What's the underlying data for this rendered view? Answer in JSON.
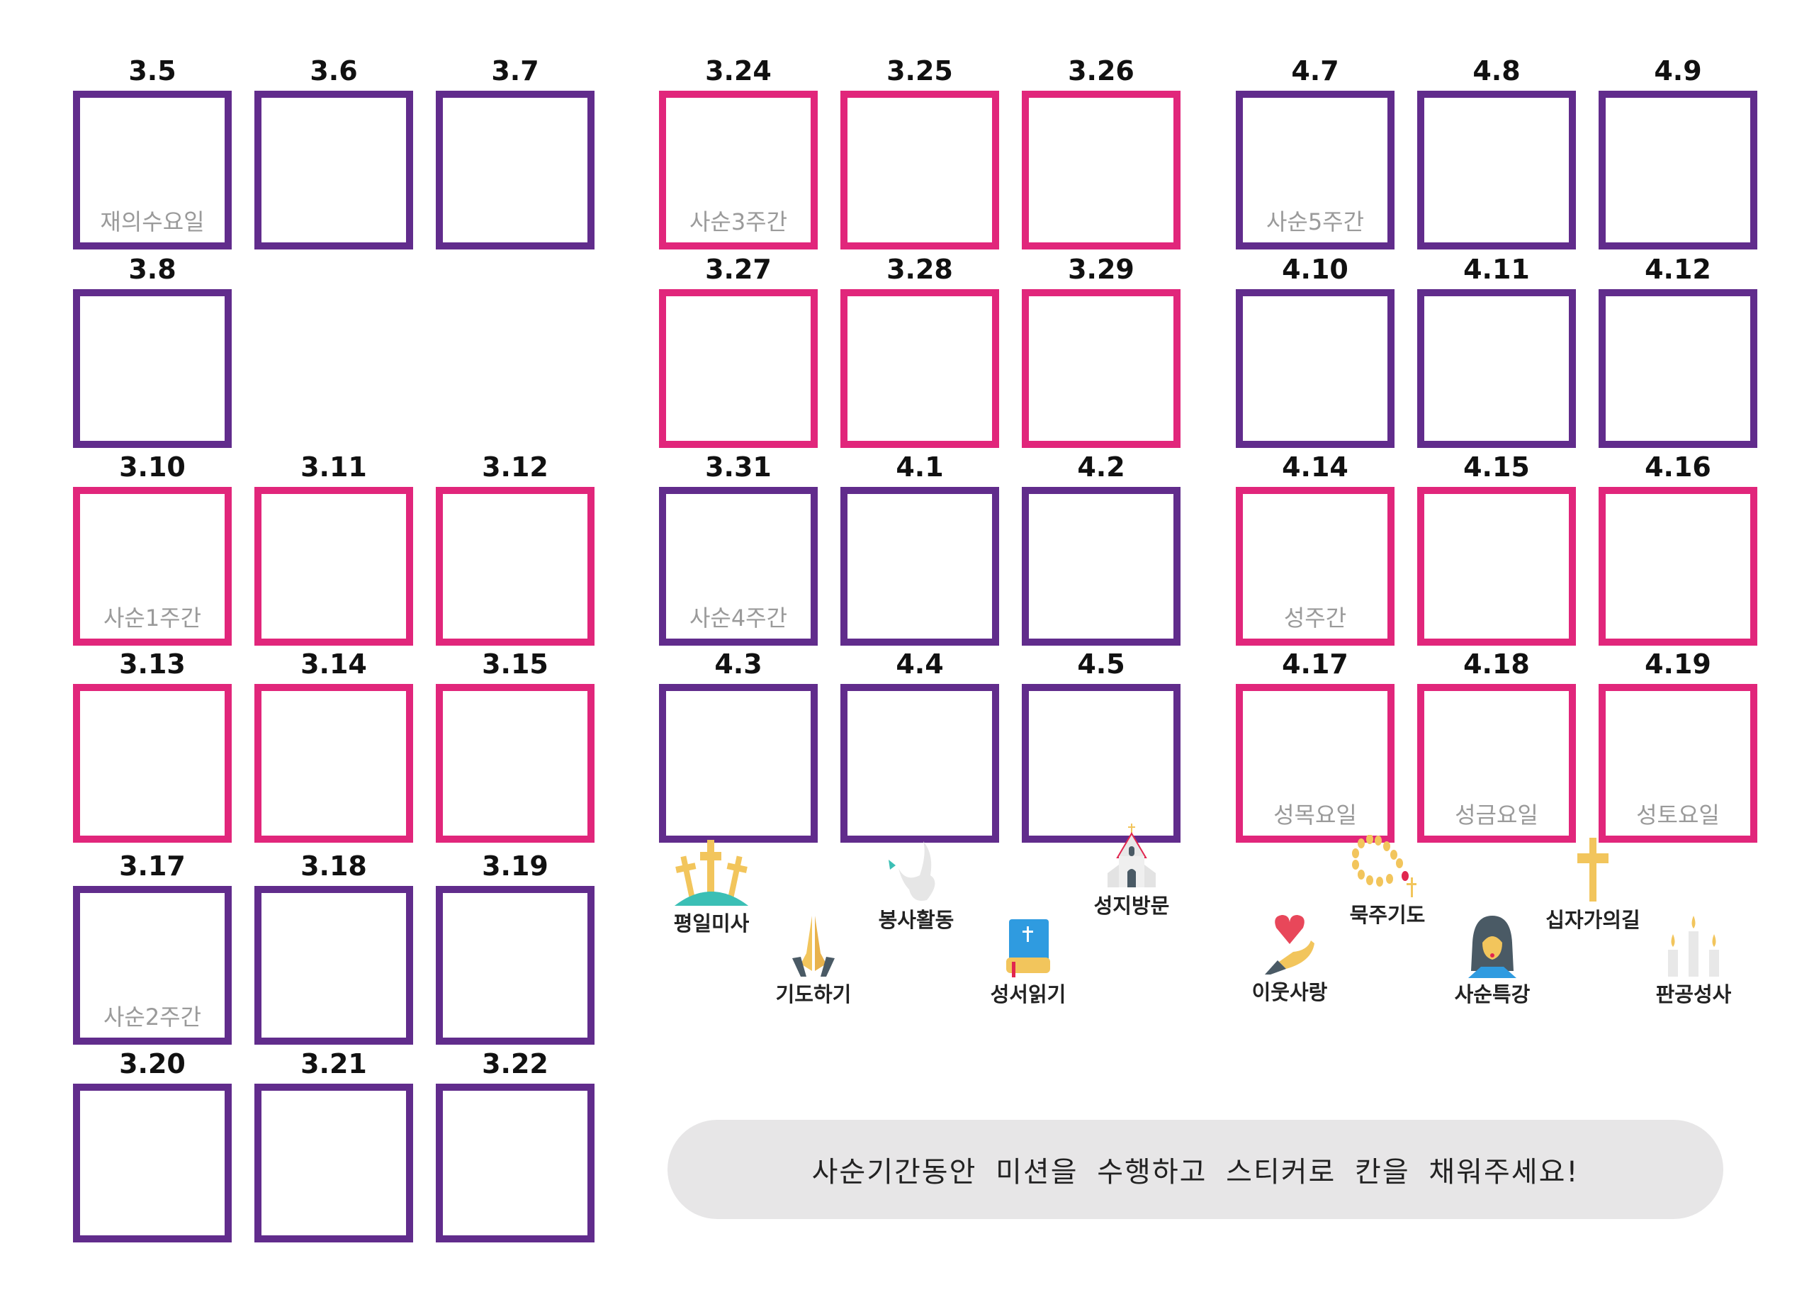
{
  "colors": {
    "purple": "#612c8c",
    "pink": "#e1267b"
  },
  "groups": [
    {
      "rows": [
        {
          "color": "purple",
          "cells": [
            {
              "date": "3.5",
              "note": "재의수요일"
            },
            {
              "date": "3.6"
            },
            {
              "date": "3.7"
            }
          ]
        },
        {
          "color": "purple",
          "cells": [
            {
              "date": "3.8"
            }
          ]
        },
        {
          "color": "pink",
          "cells": [
            {
              "date": "3.10",
              "note": "사순1주간"
            },
            {
              "date": "3.11"
            },
            {
              "date": "3.12"
            }
          ]
        },
        {
          "color": "pink",
          "cells": [
            {
              "date": "3.13"
            },
            {
              "date": "3.14"
            },
            {
              "date": "3.15"
            }
          ]
        },
        {
          "color": "purple",
          "cells": [
            {
              "date": "3.17",
              "note": "사순2주간"
            },
            {
              "date": "3.18"
            },
            {
              "date": "3.19"
            }
          ]
        },
        {
          "color": "purple",
          "cells": [
            {
              "date": "3.20"
            },
            {
              "date": "3.21"
            },
            {
              "date": "3.22"
            }
          ]
        }
      ]
    },
    {
      "rows": [
        {
          "color": "pink",
          "cells": [
            {
              "date": "3.24",
              "note": "사순3주간"
            },
            {
              "date": "3.25"
            },
            {
              "date": "3.26"
            }
          ]
        },
        {
          "color": "pink",
          "cells": [
            {
              "date": "3.27"
            },
            {
              "date": "3.28"
            },
            {
              "date": "3.29"
            }
          ]
        },
        {
          "color": "purple",
          "cells": [
            {
              "date": "3.31",
              "note": "사순4주간"
            },
            {
              "date": "4.1"
            },
            {
              "date": "4.2"
            }
          ]
        },
        {
          "color": "purple",
          "cells": [
            {
              "date": "4.3"
            },
            {
              "date": "4.4"
            },
            {
              "date": "4.5"
            }
          ]
        }
      ]
    },
    {
      "rows": [
        {
          "color": "purple",
          "cells": [
            {
              "date": "4.7",
              "note": "사순5주간"
            },
            {
              "date": "4.8"
            },
            {
              "date": "4.9"
            }
          ]
        },
        {
          "color": "purple",
          "cells": [
            {
              "date": "4.10"
            },
            {
              "date": "4.11"
            },
            {
              "date": "4.12"
            }
          ]
        },
        {
          "color": "pink",
          "cells": [
            {
              "date": "4.14",
              "note": "성주간"
            },
            {
              "date": "4.15"
            },
            {
              "date": "4.16"
            }
          ]
        },
        {
          "color": "pink",
          "cells": [
            {
              "date": "4.17",
              "note": "성목요일"
            },
            {
              "date": "4.18",
              "note": "성금요일"
            },
            {
              "date": "4.19",
              "note": "성토요일"
            }
          ]
        }
      ]
    }
  ],
  "missions": [
    {
      "label": "평일미사",
      "icon": "three-crosses-icon"
    },
    {
      "label": "기도하기",
      "icon": "praying-hands-icon"
    },
    {
      "label": "봉사활동",
      "icon": "dove-icon"
    },
    {
      "label": "성서읽기",
      "icon": "bible-icon"
    },
    {
      "label": "성지방문",
      "icon": "church-icon"
    },
    {
      "label": "이웃사랑",
      "icon": "heart-hand-icon"
    },
    {
      "label": "묵주기도",
      "icon": "rosary-icon"
    },
    {
      "label": "사순특강",
      "icon": "jesus-icon"
    },
    {
      "label": "십자가의길",
      "icon": "cross-icon"
    },
    {
      "label": "판공성사",
      "icon": "candles-icon"
    }
  ],
  "instruction": "사순기간동안 미션을 수행하고 스티커로 칸을 채워주세요!"
}
